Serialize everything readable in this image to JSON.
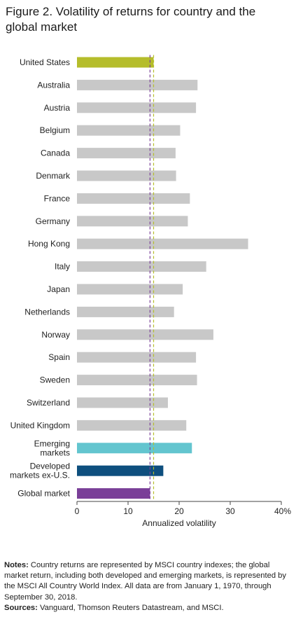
{
  "title": "Figure 2. Volatility of returns for country and the global market",
  "notes": {
    "label": "Notes:",
    "text": "Country returns are represented by MSCI country indexes; the global market return, including both developed and emerging markets, is represented by the MSCI All Country World Index. All data are from January 1, 1970, through September 30, 2018.",
    "sources_label": "Sources:",
    "sources_text": "Vanguard, Thomson Reuters Datastream, and MSCI."
  },
  "chart_data": {
    "type": "bar",
    "orientation": "horizontal",
    "title": "Figure 2. Volatility of returns for country and the global market",
    "xlabel": "Annualized volatility",
    "ylabel": "",
    "xlim": [
      0,
      40
    ],
    "x_ticks": [
      "0",
      "10",
      "20",
      "30",
      "40%"
    ],
    "grid": false,
    "categories": [
      [
        "United States"
      ],
      [
        "Australia"
      ],
      [
        "Austria"
      ],
      [
        "Belgium"
      ],
      [
        "Canada"
      ],
      [
        "Denmark"
      ],
      [
        "France"
      ],
      [
        "Germany"
      ],
      [
        "Hong Kong"
      ],
      [
        "Italy"
      ],
      [
        "Japan"
      ],
      [
        "Netherlands"
      ],
      [
        "Norway"
      ],
      [
        "Spain"
      ],
      [
        "Sweden"
      ],
      [
        "Switzerland"
      ],
      [
        "United Kingdom"
      ],
      [
        "Emerging",
        "markets"
      ],
      [
        "Developed",
        "markets ex-U.S."
      ],
      [
        "Global market"
      ]
    ],
    "values": [
      15.0,
      23.6,
      23.3,
      20.2,
      19.3,
      19.4,
      22.1,
      21.7,
      33.5,
      25.3,
      20.7,
      19.0,
      26.7,
      23.3,
      23.5,
      17.8,
      21.4,
      22.5,
      16.9,
      14.3
    ],
    "colors": [
      "#b5bd2b",
      "#c8c8c8",
      "#c8c8c8",
      "#c8c8c8",
      "#c8c8c8",
      "#c8c8c8",
      "#c8c8c8",
      "#c8c8c8",
      "#c8c8c8",
      "#c8c8c8",
      "#c8c8c8",
      "#c8c8c8",
      "#c8c8c8",
      "#c8c8c8",
      "#c8c8c8",
      "#c8c8c8",
      "#c8c8c8",
      "#63c5cf",
      "#0e4f7e",
      "#7a3f98"
    ],
    "reference_lines": [
      {
        "value": 14.3,
        "color": "#7a3f98",
        "style": "dashed"
      },
      {
        "value": 15.0,
        "color": "#b5bd2b",
        "style": "dashed"
      }
    ]
  }
}
